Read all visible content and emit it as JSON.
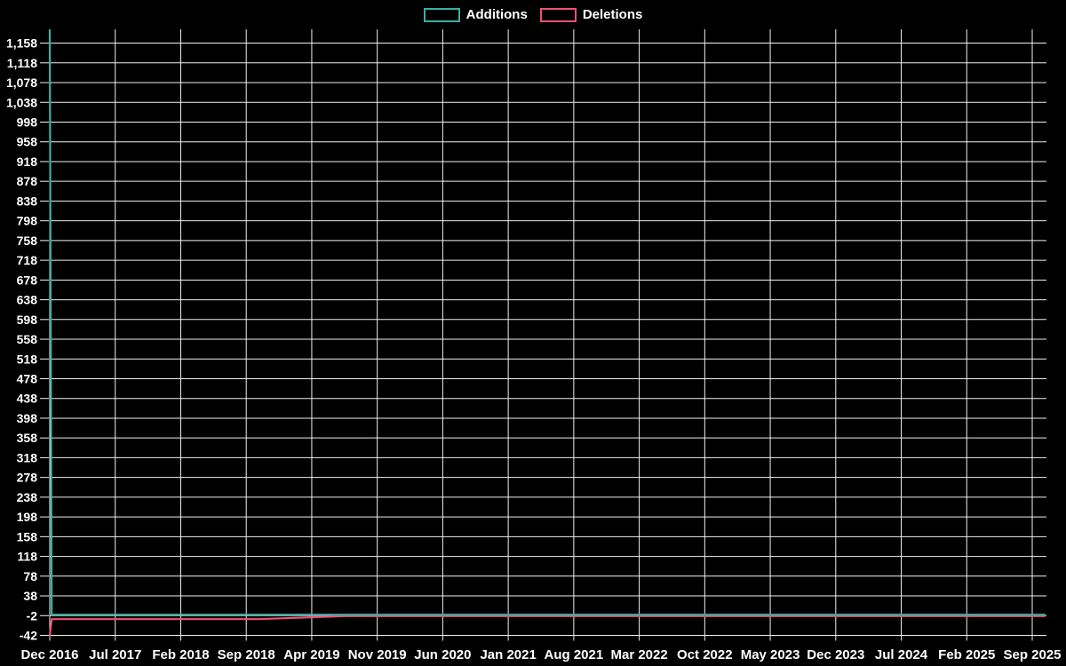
{
  "colors": {
    "background": "#000000",
    "grid": "#f0f0f0",
    "text": "#ffffff",
    "additions": "#3cb0a6",
    "deletions": "#ee5174"
  },
  "legend": {
    "items": [
      {
        "label": "Additions",
        "color": "#3cb0a6"
      },
      {
        "label": "Deletions",
        "color": "#ee5174"
      }
    ]
  },
  "chart_data": {
    "type": "line",
    "title": "",
    "legend_position": "top-center",
    "grid": true,
    "x_ticks": [
      "Dec 2016",
      "Jul 2017",
      "Feb 2018",
      "Sep 2018",
      "Apr 2019",
      "Nov 2019",
      "Jun 2020",
      "Jan 2021",
      "Aug 2021",
      "Mar 2022",
      "Oct 2022",
      "May 2023",
      "Dec 2023",
      "Jul 2024",
      "Feb 2025",
      "Sep 2025"
    ],
    "x_tick_interval_months": 7,
    "y_tick_labels": [
      "1,158",
      "1,118",
      "1,078",
      "1,038",
      "998",
      "958",
      "918",
      "878",
      "838",
      "798",
      "758",
      "718",
      "678",
      "638",
      "598",
      "558",
      "518",
      "478",
      "438",
      "398",
      "358",
      "318",
      "278",
      "238",
      "198",
      "158",
      "118",
      "78",
      "38",
      "-2",
      "-42"
    ],
    "y_tick_step": 40,
    "y_min": -42,
    "y_max": 1186,
    "series": [
      {
        "name": "Additions",
        "color": "#3cb0a6",
        "description": "Spike of ~1,186 at the first point (Dec 2016), ~0 for all later weeks",
        "points": [
          [
            0,
            1186
          ],
          [
            0.03,
            0
          ],
          [
            15.2,
            0
          ]
        ],
        "values_at_ticks": [
          1186,
          0,
          0,
          0,
          0,
          0,
          0,
          0,
          0,
          0,
          0,
          0,
          0,
          0,
          0,
          0
        ]
      },
      {
        "name": "Deletions",
        "color": "#ee5174",
        "description": "Dip of ~-42 at the first point (Dec 2016), recovers toward 0 over time",
        "points": [
          [
            0,
            -42
          ],
          [
            0.03,
            -9
          ],
          [
            3.2,
            -9
          ],
          [
            4.5,
            -3
          ],
          [
            15.2,
            -3
          ]
        ],
        "values_at_ticks": [
          -42,
          -9,
          -9,
          -9,
          -3,
          -3,
          -3,
          -3,
          -3,
          -3,
          -3,
          -3,
          -3,
          -3,
          -3,
          -3
        ]
      }
    ]
  }
}
